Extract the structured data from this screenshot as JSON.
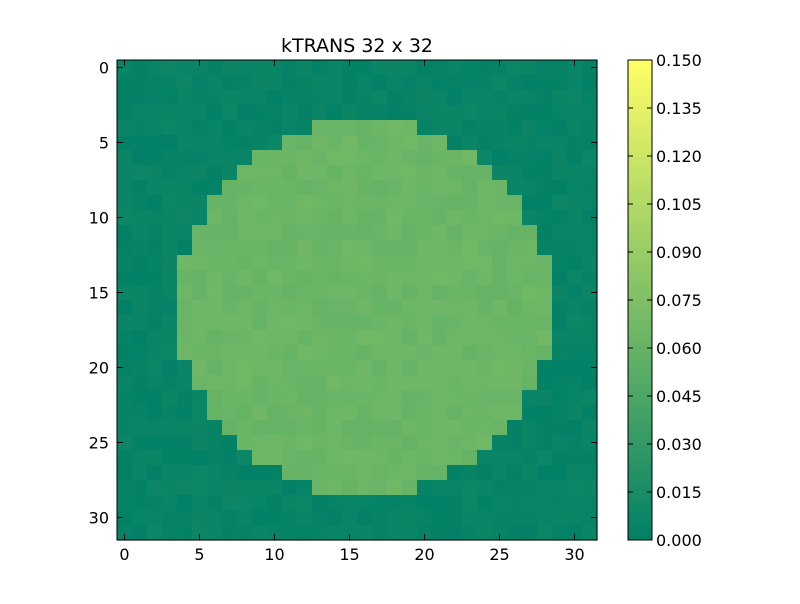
{
  "chart_data": {
    "type": "heatmap",
    "title": "kTRANS 32 x 32",
    "xlabel": "",
    "ylabel": "",
    "grid": false,
    "rows": 32,
    "cols": 32,
    "x_ticks": [
      0,
      5,
      10,
      15,
      20,
      25,
      30
    ],
    "y_ticks": [
      0,
      5,
      10,
      15,
      20,
      25,
      30
    ],
    "x_range": [
      -0.5,
      31.5
    ],
    "y_range": [
      -0.5,
      31.5
    ],
    "colormap": "summer",
    "colormap_stops": [
      "#008066",
      "#ffff66"
    ],
    "value_range": [
      0.0,
      0.15
    ],
    "colorbar_ticks": [
      "0.000",
      "0.015",
      "0.030",
      "0.045",
      "0.060",
      "0.075",
      "0.090",
      "0.105",
      "0.120",
      "0.135",
      "0.150"
    ],
    "background_value": 0.004,
    "disk_value": 0.063,
    "disk_center": [
      16,
      16
    ],
    "disk_radius": 12.5,
    "noise_amplitude": 0.003
  }
}
